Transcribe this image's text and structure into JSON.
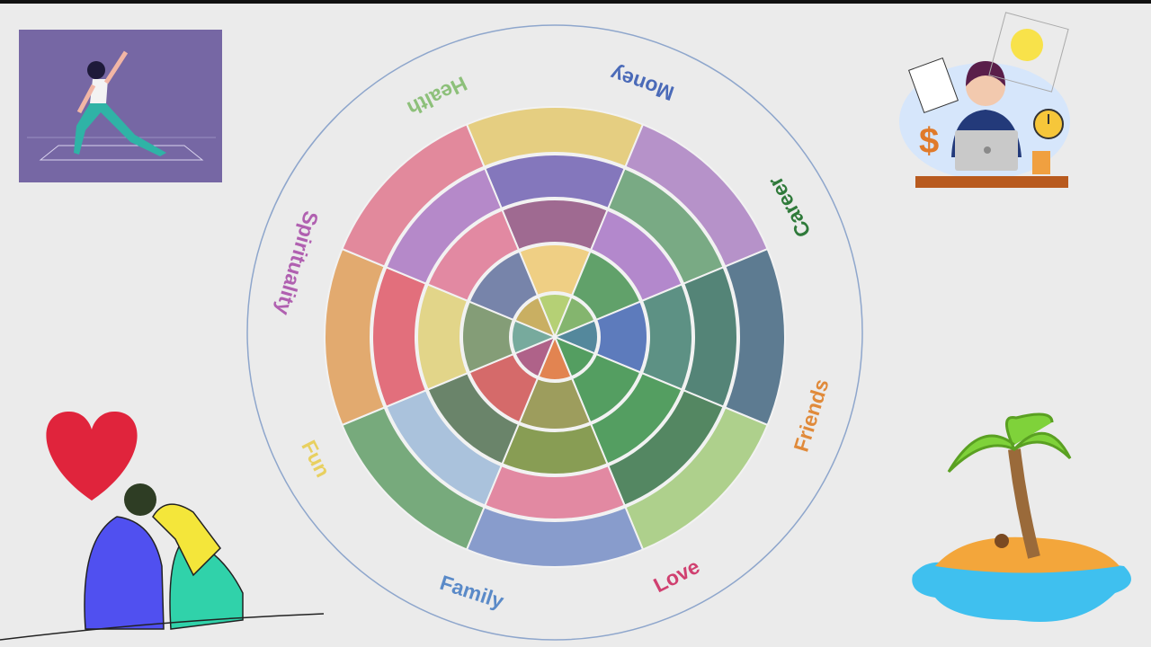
{
  "wheel": {
    "labels": [
      "Health",
      "Money",
      "Career",
      "Friends",
      "Love",
      "Family",
      "Fun",
      "Spirituality"
    ]
  }
}
